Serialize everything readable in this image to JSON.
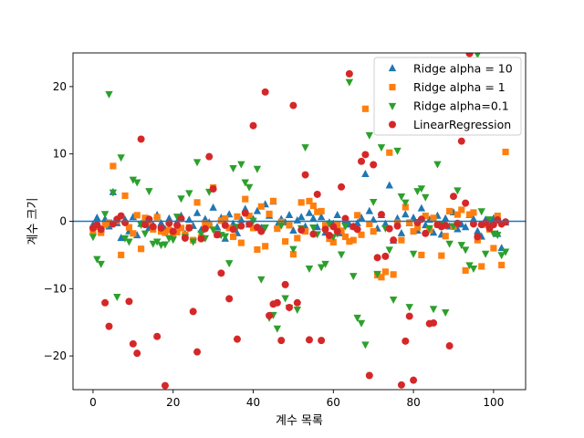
{
  "chart_data": {
    "type": "scatter",
    "xlabel": "계수 목록",
    "ylabel": "계수 크기",
    "xlim": [
      -5,
      108
    ],
    "ylim": [
      -25,
      25
    ],
    "xticks": [
      0,
      20,
      40,
      60,
      80,
      100
    ],
    "yticks": [
      -20,
      -10,
      0,
      10,
      20
    ],
    "hline": 0,
    "grid": false,
    "legend_position": "top-right",
    "series": [
      {
        "name": "Ridge alpha = 10",
        "marker": "triangle-up",
        "color": "#1f77b4",
        "x": [
          0,
          1,
          2,
          3,
          4,
          5,
          6,
          7,
          8,
          9,
          10,
          11,
          12,
          13,
          14,
          15,
          16,
          17,
          18,
          19,
          20,
          21,
          22,
          23,
          24,
          25,
          26,
          27,
          28,
          29,
          30,
          31,
          32,
          33,
          34,
          35,
          36,
          37,
          38,
          39,
          40,
          41,
          42,
          43,
          44,
          45,
          46,
          47,
          48,
          49,
          50,
          51,
          52,
          53,
          54,
          55,
          56,
          57,
          58,
          59,
          60,
          61,
          62,
          63,
          64,
          65,
          66,
          67,
          68,
          69,
          70,
          71,
          72,
          73,
          74,
          75,
          76,
          77,
          78,
          79,
          80,
          81,
          82,
          83,
          84,
          85,
          86,
          87,
          88,
          89,
          90,
          91,
          92,
          93,
          94,
          95,
          96,
          97,
          98,
          99,
          100,
          101,
          102,
          103
        ],
        "y": [
          -0.5,
          0.5,
          -1.2,
          0.3,
          -0.8,
          4.3,
          -0.3,
          -2.5,
          0.2,
          -1.5,
          0.6,
          -2.1,
          -0.4,
          0.1,
          -1.0,
          -0.6,
          0.9,
          -0.3,
          -1.2,
          0.4,
          -1.6,
          -0.1,
          0.8,
          -1.9,
          0.2,
          -0.7,
          1.2,
          -1.3,
          0.3,
          -0.2,
          2.0,
          -0.9,
          0.5,
          -2.6,
          1.0,
          -0.4,
          -1.8,
          0.2,
          1.8,
          -0.5,
          0.3,
          1.5,
          -1.0,
          2.5,
          0.8,
          2.9,
          -0.6,
          0.3,
          -0.2,
          0.9,
          -1.4,
          0.1,
          0.6,
          -0.8,
          1.2,
          0.4,
          -0.9,
          0.6,
          -1.7,
          -0.2,
          -0.4,
          0.9,
          -1.8,
          0.1,
          -0.5,
          -0.8,
          -0.3,
          0.5,
          7.0,
          1.5,
          0.2,
          -1.1,
          0.9,
          -0.4,
          5.3,
          -2.9,
          0.4,
          -1.8,
          1.0,
          -0.3,
          0.5,
          -1.4,
          1.9,
          -0.6,
          0.2,
          -1.7,
          0.8,
          -2.0,
          0.4,
          -0.8,
          1.3,
          -1.2,
          -0.5,
          -0.9,
          0.9,
          0.3,
          -1.5,
          -2.3,
          0.2,
          -0.4,
          0.4,
          -1.9,
          -4.0,
          -0.2
        ]
      },
      {
        "name": "Ridge alpha = 1",
        "marker": "square",
        "color": "#ff7f0e",
        "x": [
          0,
          1,
          2,
          3,
          4,
          5,
          6,
          7,
          8,
          9,
          10,
          11,
          12,
          13,
          14,
          15,
          16,
          17,
          18,
          19,
          20,
          21,
          22,
          23,
          24,
          25,
          26,
          27,
          28,
          29,
          30,
          31,
          32,
          33,
          34,
          35,
          36,
          37,
          38,
          39,
          40,
          41,
          42,
          43,
          44,
          45,
          46,
          47,
          48,
          49,
          50,
          51,
          52,
          53,
          54,
          55,
          56,
          57,
          58,
          59,
          60,
          61,
          62,
          63,
          64,
          65,
          66,
          67,
          68,
          69,
          70,
          71,
          72,
          73,
          74,
          75,
          76,
          77,
          78,
          79,
          80,
          81,
          82,
          83,
          84,
          85,
          86,
          87,
          88,
          89,
          90,
          91,
          92,
          93,
          94,
          95,
          96,
          97,
          98,
          99,
          100,
          101,
          102,
          103
        ],
        "y": [
          -1.5,
          -0.8,
          -1.7,
          -0.5,
          -0.2,
          8.2,
          0.1,
          -5.0,
          3.8,
          -0.9,
          -1.8,
          0.9,
          -4.1,
          0.5,
          -0.2,
          -1.2,
          0.6,
          -1.5,
          -1.7,
          -1.3,
          -1.9,
          -1.6,
          -1.0,
          -2.0,
          -0.9,
          -2.8,
          2.8,
          -2.4,
          -0.3,
          -0.6,
          5.0,
          -2.0,
          0.1,
          0.4,
          -1.0,
          -2.3,
          0.7,
          -3.2,
          3.3,
          0.8,
          -1.0,
          -4.2,
          2.2,
          -3.7,
          1.1,
          3.0,
          -1.1,
          -0.1,
          -3.0,
          -0.6,
          -4.9,
          -2.5,
          2.8,
          -1.5,
          3.0,
          2.3,
          1.4,
          1.5,
          -0.6,
          -2.6,
          -3.1,
          -0.5,
          -1.4,
          -2.3,
          -3.0,
          -2.8,
          0.9,
          -2.0,
          16.7,
          -0.4,
          -1.5,
          -8.0,
          -8.3,
          -7.5,
          10.2,
          -7.9,
          -0.2,
          -2.8,
          2.1,
          -0.2,
          -1.5,
          -0.9,
          -5.0,
          0.8,
          -1.3,
          0.5,
          -0.5,
          -5.1,
          -2.2,
          1.5,
          -0.8,
          1.0,
          1.7,
          -7.3,
          1.0,
          1.3,
          -2.8,
          -6.7,
          -0.5,
          -1.2,
          -4.0,
          0.8,
          -6.5,
          10.3
        ]
      },
      {
        "name": "Ridge alpha=0.1",
        "marker": "triangle-down",
        "color": "#2ca02c",
        "x": [
          0,
          1,
          2,
          3,
          4,
          5,
          6,
          7,
          8,
          9,
          10,
          11,
          12,
          13,
          14,
          15,
          16,
          17,
          18,
          19,
          20,
          21,
          22,
          23,
          24,
          25,
          26,
          27,
          28,
          29,
          30,
          31,
          32,
          33,
          34,
          35,
          36,
          37,
          38,
          39,
          40,
          41,
          42,
          43,
          44,
          45,
          46,
          47,
          48,
          49,
          50,
          51,
          52,
          53,
          54,
          55,
          56,
          57,
          58,
          59,
          60,
          61,
          62,
          63,
          64,
          65,
          66,
          67,
          68,
          69,
          70,
          71,
          72,
          73,
          74,
          75,
          76,
          77,
          78,
          79,
          80,
          81,
          82,
          83,
          84,
          85,
          86,
          87,
          88,
          89,
          90,
          91,
          92,
          93,
          94,
          95,
          96,
          97,
          98,
          99,
          100,
          101,
          102,
          103
        ],
        "y": [
          -2.3,
          -5.6,
          -6.3,
          1.1,
          18.9,
          4.3,
          -11.2,
          9.5,
          -2.5,
          -3.0,
          6.2,
          5.8,
          -0.5,
          -1.8,
          4.5,
          -3.3,
          -3.0,
          -3.5,
          -3.4,
          -2.5,
          -2.7,
          0.7,
          3.4,
          -2.3,
          4.2,
          -3.0,
          8.8,
          -1.8,
          -2.5,
          4.4,
          -1.2,
          -1.8,
          -2.0,
          -2.2,
          -6.2,
          7.9,
          -0.8,
          8.5,
          5.8,
          5.1,
          0.1,
          7.8,
          -8.6,
          -0.9,
          -14.3,
          -13.9,
          -15.9,
          -0.6,
          -11.4,
          -12.8,
          -4.1,
          -13.1,
          -1.0,
          11.0,
          -7.0,
          -0.9,
          -1.9,
          -6.8,
          -6.3,
          -0.3,
          -2.3,
          -1.8,
          -4.9,
          -0.7,
          20.7,
          -8.1,
          -14.3,
          -15.1,
          -18.3,
          12.8,
          2.9,
          -7.8,
          11.0,
          -1.0,
          -4.2,
          -11.6,
          10.5,
          3.7,
          2.8,
          -12.7,
          -4.8,
          4.5,
          4.9,
          3.6,
          -1.0,
          -13.0,
          8.5,
          -0.5,
          -13.5,
          -3.3,
          -0.7,
          4.6,
          -3.5,
          -4.2,
          -6.5,
          -7.0,
          24.8,
          1.5,
          -4.8,
          0.3,
          -1.8,
          -2.0,
          -5.0,
          -4.5
        ]
      },
      {
        "name": "LinearRegression",
        "marker": "circle",
        "color": "#d62728",
        "x": [
          0,
          1,
          2,
          3,
          4,
          5,
          6,
          7,
          8,
          9,
          10,
          11,
          12,
          13,
          14,
          15,
          16,
          17,
          18,
          19,
          20,
          21,
          22,
          23,
          24,
          25,
          26,
          27,
          28,
          29,
          30,
          31,
          32,
          33,
          34,
          35,
          36,
          37,
          38,
          39,
          40,
          41,
          42,
          43,
          44,
          45,
          46,
          47,
          48,
          49,
          50,
          51,
          52,
          53,
          54,
          55,
          56,
          57,
          58,
          59,
          60,
          61,
          62,
          63,
          64,
          65,
          66,
          67,
          68,
          69,
          70,
          71,
          72,
          73,
          74,
          75,
          76,
          77,
          78,
          79,
          80,
          81,
          82,
          83,
          84,
          85,
          86,
          87,
          88,
          89,
          90,
          91,
          92,
          93,
          94,
          95,
          96,
          97,
          98,
          99,
          100,
          101,
          102,
          103
        ],
        "y": [
          -1.0,
          -0.5,
          -1.2,
          -12.1,
          -15.6,
          -0.4,
          0.3,
          0.8,
          -0.2,
          -11.9,
          -18.2,
          -19.6,
          12.2,
          -0.5,
          0.3,
          -0.8,
          -17.1,
          -1.0,
          -24.4,
          -0.3,
          -1.5,
          -0.6,
          0.4,
          -2.5,
          -1.0,
          -13.4,
          -19.4,
          -2.6,
          -1.1,
          9.6,
          4.8,
          -2.0,
          -7.7,
          -0.6,
          -11.5,
          -1.2,
          -17.5,
          -0.7,
          1.2,
          -0.4,
          14.2,
          -0.9,
          -1.5,
          19.2,
          -14.0,
          -12.3,
          -12.1,
          -17.7,
          -9.4,
          -12.8,
          17.2,
          -12.1,
          -1.3,
          6.9,
          -17.6,
          -1.9,
          4.0,
          -17.7,
          -1.2,
          -2.1,
          -0.8,
          -1.5,
          5.1,
          0.4,
          21.9,
          -0.8,
          -1.2,
          8.9,
          9.9,
          -22.9,
          8.4,
          -5.4,
          1.0,
          -5.2,
          -1.1,
          -2.8,
          -0.7,
          -24.3,
          -17.8,
          -14.1,
          -23.6,
          -0.2,
          0.3,
          -1.8,
          -15.2,
          -15.1,
          -0.5,
          -0.8,
          -0.6,
          -18.5,
          3.7,
          -0.3,
          11.9,
          2.7,
          24.9,
          -0.4,
          -2.3,
          -0.5,
          -0.2,
          -1.0,
          -0.5,
          0.2,
          -0.4,
          -0.1
        ]
      }
    ]
  }
}
